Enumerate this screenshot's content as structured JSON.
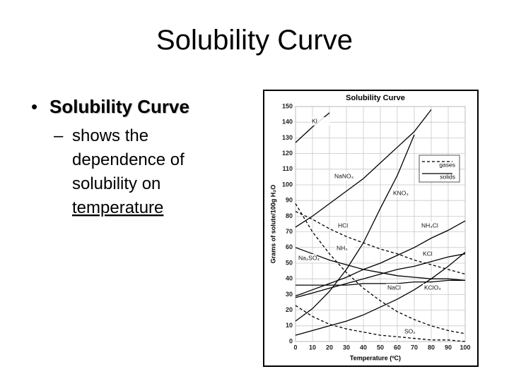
{
  "slide": {
    "title": "Solubility Curve",
    "bullet": "Solubility Curve",
    "sub_bullet_lines": [
      "shows the",
      "dependence of",
      "solubility on",
      "temperature"
    ]
  },
  "chart_data": {
    "type": "line",
    "title": "Solubility Curve",
    "x_label": "Temperature (ºC)",
    "y_label": "Grams of solute/100g H₂O",
    "x": [
      0,
      10,
      20,
      30,
      40,
      50,
      60,
      70,
      80,
      90,
      100
    ],
    "xlim": [
      0,
      100
    ],
    "xticks": [
      0,
      10,
      20,
      30,
      40,
      50,
      60,
      70,
      80,
      90,
      100
    ],
    "ylim": [
      0,
      150
    ],
    "yticks": [
      0,
      10,
      20,
      30,
      40,
      50,
      60,
      70,
      80,
      90,
      100,
      110,
      120,
      130,
      140,
      150
    ],
    "grid": true,
    "legend": [
      {
        "label": "gases",
        "style": "dashed"
      },
      {
        "label": "solids",
        "style": "solid"
      }
    ],
    "series": [
      {
        "name": "KI",
        "color": "#000000",
        "style": "solid",
        "values": [
          127,
          137,
          146,
          null,
          null,
          null,
          null,
          null,
          null,
          null,
          null
        ]
      },
      {
        "name": "NaNO₃",
        "color": "#000000",
        "style": "solid",
        "values": [
          73,
          80,
          88,
          96,
          104,
          114,
          124,
          134,
          148,
          null,
          null
        ]
      },
      {
        "name": "KNO₃",
        "color": "#000000",
        "style": "solid",
        "values": [
          13,
          21,
          32,
          46,
          63,
          85,
          106,
          132,
          null,
          null,
          null
        ]
      },
      {
        "name": "HCl",
        "color": "#000000",
        "style": "dashed",
        "values": [
          83,
          78,
          72,
          67,
          63,
          59,
          56,
          52,
          49,
          46,
          43
        ]
      },
      {
        "name": "NH₄Cl",
        "color": "#000000",
        "style": "solid",
        "values": [
          29,
          33,
          37,
          41,
          46,
          50,
          55,
          60,
          66,
          71,
          77
        ]
      },
      {
        "name": "NH₃",
        "color": "#000000",
        "style": "dashed",
        "values": [
          88,
          70,
          56,
          44,
          34,
          26,
          19,
          14,
          10,
          7,
          5
        ]
      },
      {
        "name": "Na₂SO₄",
        "color": "#000000",
        "style": "solid",
        "values": [
          60,
          56,
          52,
          49,
          46,
          44,
          42,
          41,
          40,
          40,
          39
        ]
      },
      {
        "name": "KCl",
        "color": "#000000",
        "style": "solid",
        "values": [
          28,
          31,
          34,
          37,
          40,
          43,
          46,
          48,
          51,
          54,
          56
        ]
      },
      {
        "name": "NaCl",
        "color": "#000000",
        "style": "solid",
        "values": [
          36,
          36,
          36,
          36,
          37,
          37,
          37,
          38,
          38,
          39,
          39
        ]
      },
      {
        "name": "KClO₃",
        "color": "#000000",
        "style": "solid",
        "values": [
          4,
          7,
          10,
          13,
          17,
          22,
          27,
          33,
          40,
          48,
          57
        ]
      },
      {
        "name": "SO₂",
        "color": "#000000",
        "style": "dashed",
        "values": [
          23,
          16,
          11,
          8,
          6,
          4,
          3,
          2,
          1,
          1,
          0
        ]
      }
    ]
  }
}
